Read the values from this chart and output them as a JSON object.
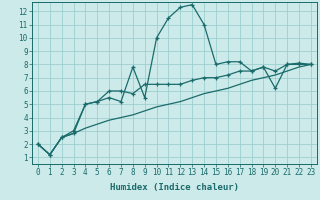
{
  "xlabel": "Humidex (Indice chaleur)",
  "background_color": "#cdeaea",
  "grid_color": "#9ecece",
  "line_color": "#1a6b6b",
  "xlim": [
    -0.5,
    23.5
  ],
  "ylim": [
    0.5,
    12.7
  ],
  "xticks": [
    0,
    1,
    2,
    3,
    4,
    5,
    6,
    7,
    8,
    9,
    10,
    11,
    12,
    13,
    14,
    15,
    16,
    17,
    18,
    19,
    20,
    21,
    22,
    23
  ],
  "yticks": [
    1,
    2,
    3,
    4,
    5,
    6,
    7,
    8,
    9,
    10,
    11,
    12
  ],
  "line1_x": [
    0,
    1,
    2,
    3,
    4,
    5,
    6,
    7,
    8,
    9,
    10,
    11,
    12,
    13,
    14,
    15,
    16,
    17,
    18,
    19,
    20,
    21,
    22,
    23
  ],
  "line1_y": [
    2.0,
    1.2,
    2.5,
    2.8,
    5.0,
    5.2,
    5.5,
    5.2,
    7.8,
    5.5,
    10.0,
    11.5,
    12.3,
    12.5,
    11.0,
    8.0,
    8.2,
    8.2,
    7.5,
    7.8,
    6.2,
    8.0,
    8.0,
    8.0
  ],
  "line2_x": [
    0,
    1,
    2,
    3,
    4,
    5,
    6,
    7,
    8,
    9,
    10,
    11,
    12,
    13,
    14,
    15,
    16,
    17,
    18,
    19,
    20,
    21,
    22,
    23
  ],
  "line2_y": [
    2.0,
    1.2,
    2.5,
    3.0,
    5.0,
    5.2,
    6.0,
    6.0,
    5.8,
    6.5,
    6.5,
    6.5,
    6.5,
    6.8,
    7.0,
    7.0,
    7.2,
    7.5,
    7.5,
    7.8,
    7.5,
    8.0,
    8.1,
    8.0
  ],
  "line3_x": [
    0,
    1,
    2,
    3,
    4,
    5,
    6,
    7,
    8,
    9,
    10,
    11,
    12,
    13,
    14,
    15,
    16,
    17,
    18,
    19,
    20,
    21,
    22,
    23
  ],
  "line3_y": [
    2.0,
    1.2,
    2.5,
    2.8,
    3.2,
    3.5,
    3.8,
    4.0,
    4.2,
    4.5,
    4.8,
    5.0,
    5.2,
    5.5,
    5.8,
    6.0,
    6.2,
    6.5,
    6.8,
    7.0,
    7.2,
    7.5,
    7.8,
    8.0
  ],
  "xlabel_fontsize": 6.5,
  "tick_fontsize": 5.5
}
